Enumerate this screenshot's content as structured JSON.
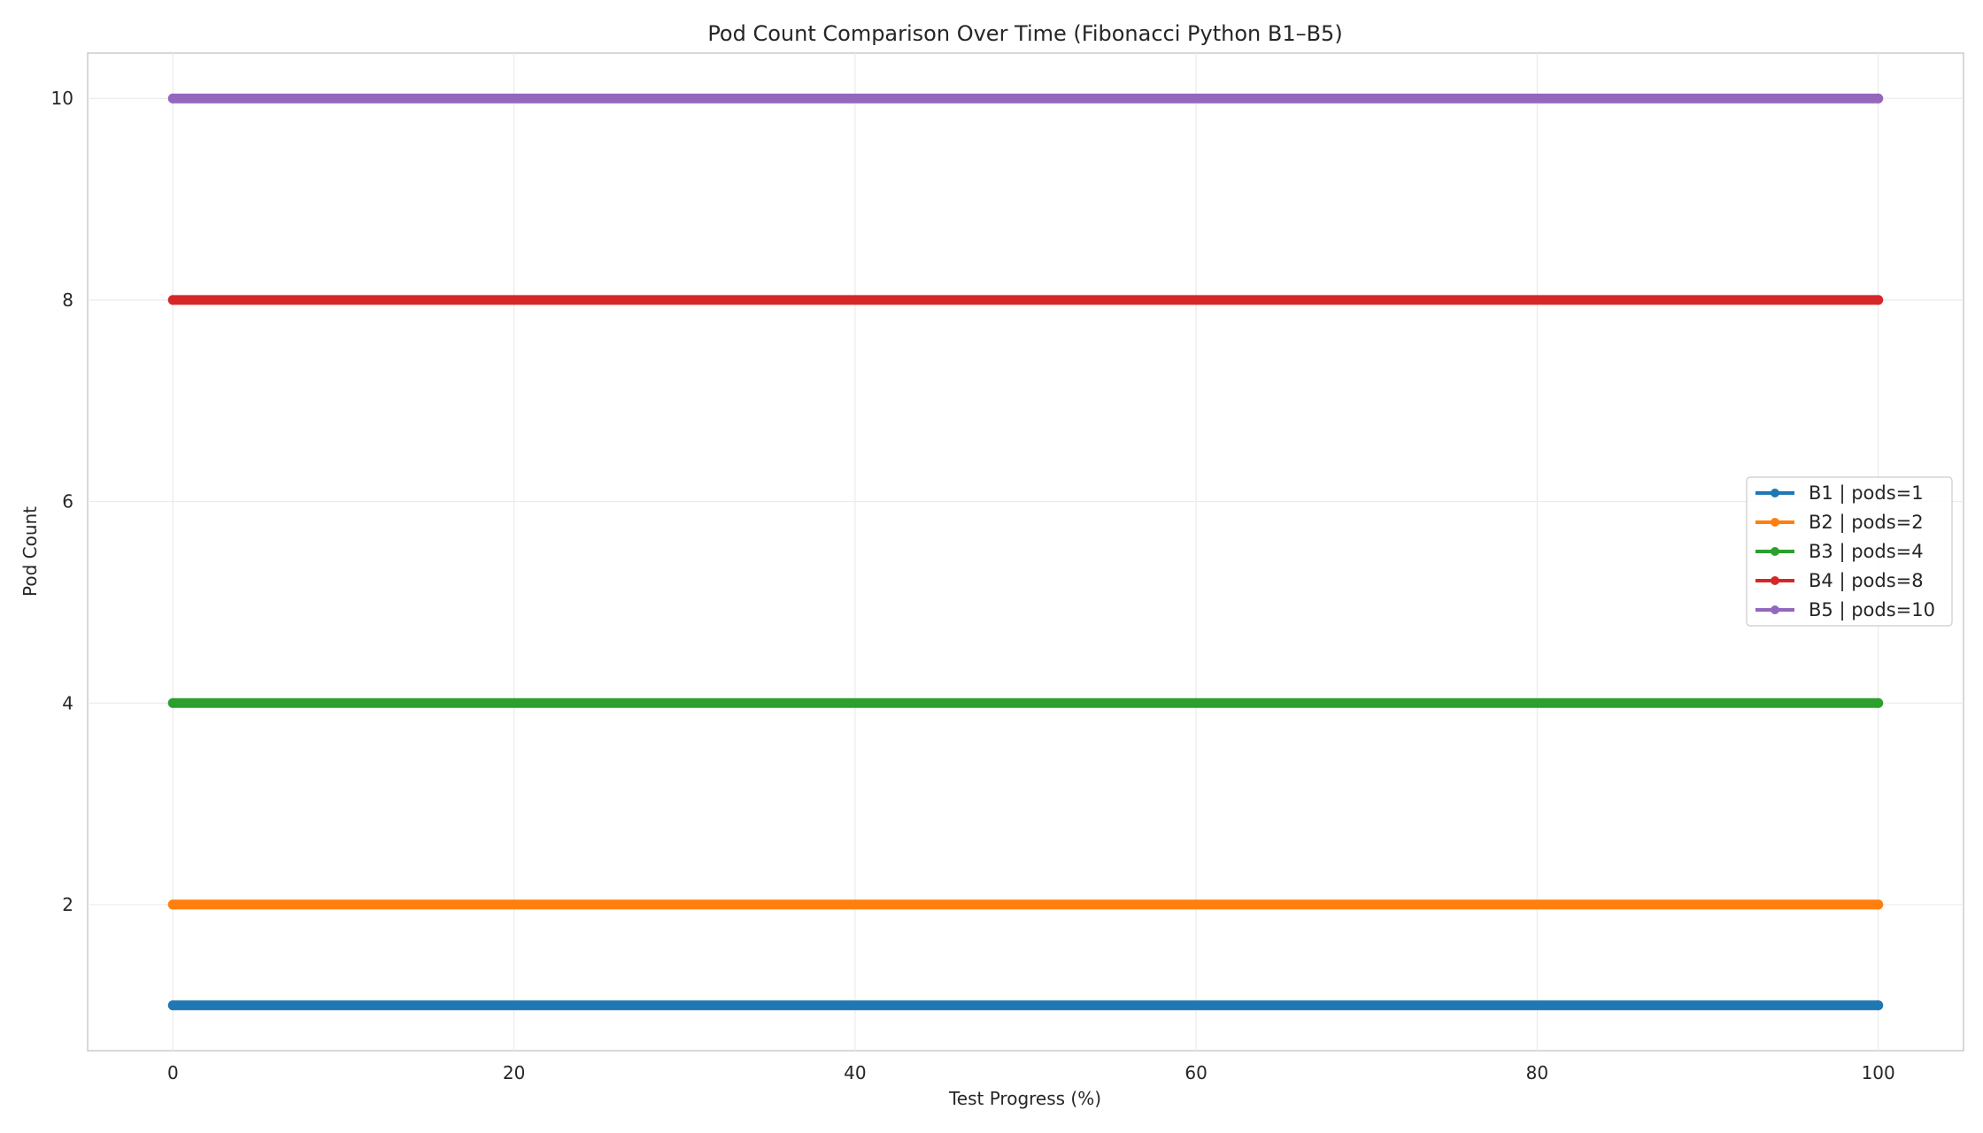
{
  "chart_data": {
    "type": "line",
    "title": "Pod Count Comparison Over Time (Fibonacci Python B1–B5)",
    "xlabel": "Test Progress (%)",
    "ylabel": "Pod Count",
    "xlim": [
      -5,
      105
    ],
    "ylim": [
      0.55,
      10.45
    ],
    "xticks": [
      0,
      20,
      40,
      60,
      80,
      100
    ],
    "yticks": [
      2,
      4,
      6,
      8,
      10
    ],
    "grid": true,
    "legend_position": "center-right",
    "x_range": [
      0,
      100
    ],
    "series": [
      {
        "name": "B1 | pods=1",
        "value": 1,
        "color": "#1f77b4"
      },
      {
        "name": "B2 | pods=2",
        "value": 2,
        "color": "#ff7f0e"
      },
      {
        "name": "B3 | pods=4",
        "value": 4,
        "color": "#2ca02c"
      },
      {
        "name": "B4 | pods=8",
        "value": 8,
        "color": "#d62728"
      },
      {
        "name": "B5 | pods=10",
        "value": 10,
        "color": "#9467bd"
      }
    ]
  }
}
